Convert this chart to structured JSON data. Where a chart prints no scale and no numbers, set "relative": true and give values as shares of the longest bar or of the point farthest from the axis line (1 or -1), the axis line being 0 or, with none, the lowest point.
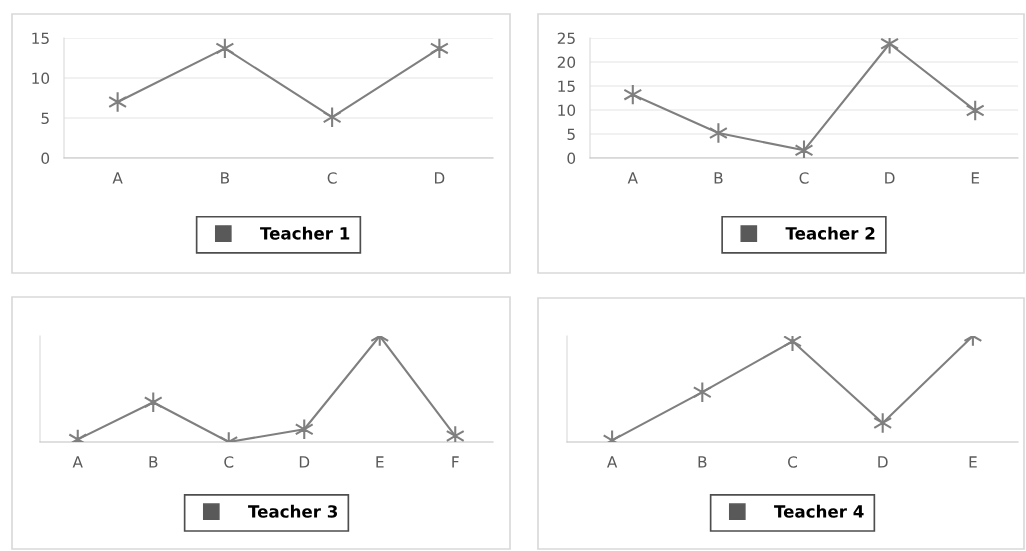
{
  "chart_data": [
    {
      "type": "line",
      "categories": [
        "A",
        "B",
        "C",
        "D"
      ],
      "ylim": [
        0,
        15
      ],
      "yticks": [
        0,
        5,
        10,
        15
      ],
      "grid": "y",
      "legend": "bottom",
      "marker": "cross",
      "line_style": "solid",
      "series": [
        {
          "name": "Teacher 1",
          "color": "#7f7f7f",
          "values": [
            7.0,
            13.7,
            5.1,
            13.7
          ]
        }
      ]
    },
    {
      "type": "line",
      "categories": [
        "A",
        "B",
        "C",
        "D",
        "E"
      ],
      "ylim": [
        0,
        25
      ],
      "yticks": [
        0,
        5,
        10,
        15,
        20,
        25
      ],
      "grid": "y",
      "legend": "bottom",
      "marker": "cross",
      "line_style": "solid",
      "series": [
        {
          "name": "Teacher 2",
          "color": "#7f7f7f",
          "values": [
            13.2,
            5.2,
            1.6,
            23.8,
            9.9
          ]
        }
      ]
    },
    {
      "type": "line",
      "categories": [
        "A",
        "B",
        "C",
        "D",
        "E",
        "F"
      ],
      "relative": true,
      "legend": "bottom",
      "marker": "cross",
      "line_style": "solid",
      "series": [
        {
          "name": "Teacher 3",
          "color": "#7f7f7f",
          "values": [
            0.025,
            0.375,
            0,
            0.12,
            1,
            0.057
          ]
        }
      ]
    },
    {
      "type": "line",
      "categories": [
        "A",
        "B",
        "C",
        "D",
        "E"
      ],
      "relative": true,
      "legend": "bottom",
      "marker": "cross",
      "line_style": "solid",
      "series": [
        {
          "name": "Teacher 4",
          "color": "#7f7f7f",
          "values": [
            0.016,
            0.47,
            0.95,
            0.18,
            1
          ]
        }
      ]
    }
  ]
}
